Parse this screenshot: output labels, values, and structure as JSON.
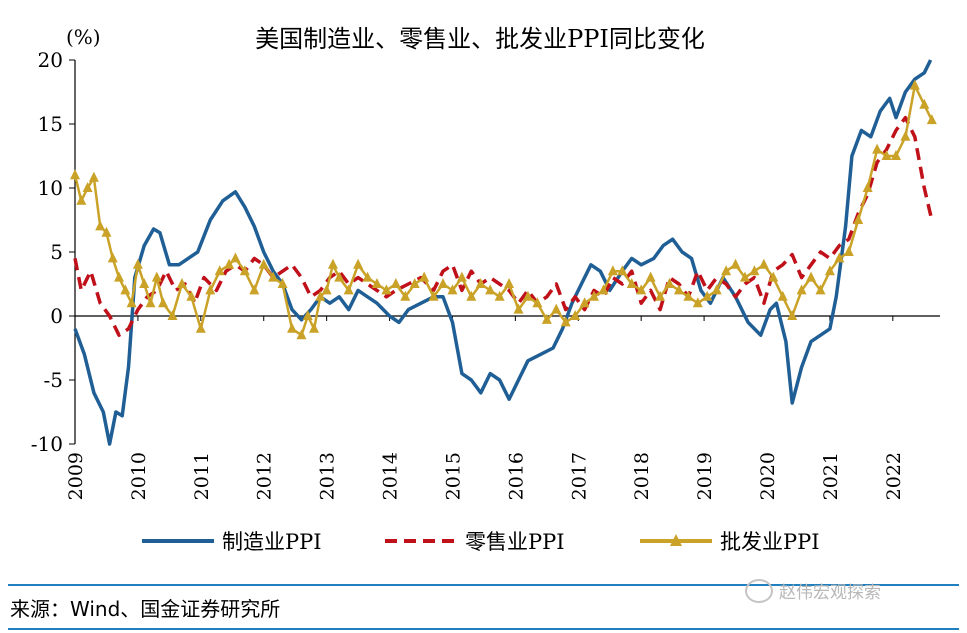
{
  "chart_data": {
    "type": "line",
    "title": "美国制造业、零售业、批发业PPI同比变化",
    "ylabel": "(%)",
    "ylim": [
      -10,
      20
    ],
    "yticks": [
      20,
      15,
      10,
      5,
      0,
      -5,
      -10
    ],
    "xlim": [
      2009,
      2022.75
    ],
    "xticks": [
      "2009",
      "2010",
      "2011",
      "2012",
      "2013",
      "2014",
      "2015",
      "2016",
      "2017",
      "2018",
      "2019",
      "2020",
      "2021",
      "2022"
    ],
    "legend_position": "bottom",
    "grid": false,
    "series": [
      {
        "name": "制造业PPI",
        "color": "#1f5f95",
        "style": "solid",
        "points": [
          [
            2009.0,
            -1.0
          ],
          [
            2009.15,
            -3.0
          ],
          [
            2009.3,
            -6.0
          ],
          [
            2009.45,
            -7.5
          ],
          [
            2009.55,
            -10.0
          ],
          [
            2009.65,
            -7.5
          ],
          [
            2009.75,
            -7.8
          ],
          [
            2009.85,
            -4.0
          ],
          [
            2009.95,
            3.0
          ],
          [
            2010.1,
            5.5
          ],
          [
            2010.25,
            6.8
          ],
          [
            2010.35,
            6.5
          ],
          [
            2010.5,
            4.0
          ],
          [
            2010.65,
            4.0
          ],
          [
            2010.8,
            4.5
          ],
          [
            2010.95,
            5.0
          ],
          [
            2011.15,
            7.5
          ],
          [
            2011.35,
            9.0
          ],
          [
            2011.55,
            9.7
          ],
          [
            2011.7,
            8.5
          ],
          [
            2011.85,
            7.0
          ],
          [
            2012.0,
            5.0
          ],
          [
            2012.15,
            3.5
          ],
          [
            2012.3,
            2.5
          ],
          [
            2012.45,
            0.5
          ],
          [
            2012.6,
            -0.3
          ],
          [
            2012.75,
            0.5
          ],
          [
            2012.9,
            1.5
          ],
          [
            2013.05,
            1.0
          ],
          [
            2013.2,
            1.5
          ],
          [
            2013.35,
            0.5
          ],
          [
            2013.5,
            2.0
          ],
          [
            2013.65,
            1.5
          ],
          [
            2013.8,
            1.0
          ],
          [
            2014.0,
            0.0
          ],
          [
            2014.15,
            -0.5
          ],
          [
            2014.3,
            0.5
          ],
          [
            2014.5,
            1.0
          ],
          [
            2014.7,
            1.5
          ],
          [
            2014.85,
            1.5
          ],
          [
            2015.0,
            -0.5
          ],
          [
            2015.15,
            -4.5
          ],
          [
            2015.3,
            -5.0
          ],
          [
            2015.45,
            -6.0
          ],
          [
            2015.6,
            -4.5
          ],
          [
            2015.75,
            -5.0
          ],
          [
            2015.9,
            -6.5
          ],
          [
            2016.05,
            -5.0
          ],
          [
            2016.2,
            -3.5
          ],
          [
            2016.4,
            -3.0
          ],
          [
            2016.6,
            -2.5
          ],
          [
            2016.75,
            -1.0
          ],
          [
            2016.9,
            1.0
          ],
          [
            2017.05,
            2.5
          ],
          [
            2017.2,
            4.0
          ],
          [
            2017.35,
            3.5
          ],
          [
            2017.5,
            2.0
          ],
          [
            2017.7,
            3.5
          ],
          [
            2017.85,
            4.5
          ],
          [
            2018.0,
            4.0
          ],
          [
            2018.2,
            4.5
          ],
          [
            2018.35,
            5.5
          ],
          [
            2018.5,
            6.0
          ],
          [
            2018.65,
            5.0
          ],
          [
            2018.8,
            4.5
          ],
          [
            2018.95,
            2.0
          ],
          [
            2019.1,
            1.0
          ],
          [
            2019.3,
            3.0
          ],
          [
            2019.5,
            1.5
          ],
          [
            2019.7,
            -0.5
          ],
          [
            2019.9,
            -1.5
          ],
          [
            2020.05,
            0.5
          ],
          [
            2020.15,
            1.0
          ],
          [
            2020.3,
            -2.0
          ],
          [
            2020.4,
            -6.8
          ],
          [
            2020.55,
            -4.0
          ],
          [
            2020.7,
            -2.0
          ],
          [
            2020.85,
            -1.5
          ],
          [
            2021.0,
            -1.0
          ],
          [
            2021.1,
            1.5
          ],
          [
            2021.25,
            7.0
          ],
          [
            2021.35,
            12.5
          ],
          [
            2021.5,
            14.5
          ],
          [
            2021.65,
            14.0
          ],
          [
            2021.8,
            16.0
          ],
          [
            2021.95,
            17.0
          ],
          [
            2022.05,
            15.5
          ],
          [
            2022.2,
            17.5
          ],
          [
            2022.35,
            18.5
          ],
          [
            2022.5,
            19.0
          ],
          [
            2022.6,
            20.0
          ]
        ]
      },
      {
        "name": "零售业PPI",
        "color": "#c0101a",
        "style": "dashed",
        "points": [
          [
            2009.0,
            4.5
          ],
          [
            2009.1,
            2.0
          ],
          [
            2009.25,
            3.5
          ],
          [
            2009.4,
            1.0
          ],
          [
            2009.55,
            0.0
          ],
          [
            2009.7,
            -1.5
          ],
          [
            2009.85,
            -1.0
          ],
          [
            2010.0,
            0.5
          ],
          [
            2010.15,
            1.5
          ],
          [
            2010.3,
            2.0
          ],
          [
            2010.45,
            3.5
          ],
          [
            2010.6,
            2.0
          ],
          [
            2010.75,
            2.5
          ],
          [
            2010.9,
            1.0
          ],
          [
            2011.05,
            3.0
          ],
          [
            2011.25,
            2.0
          ],
          [
            2011.4,
            3.5
          ],
          [
            2011.55,
            4.0
          ],
          [
            2011.7,
            3.5
          ],
          [
            2011.85,
            4.5
          ],
          [
            2012.0,
            4.0
          ],
          [
            2012.15,
            3.0
          ],
          [
            2012.3,
            3.5
          ],
          [
            2012.45,
            4.0
          ],
          [
            2012.6,
            3.0
          ],
          [
            2012.75,
            1.5
          ],
          [
            2012.9,
            2.0
          ],
          [
            2013.05,
            3.0
          ],
          [
            2013.2,
            3.5
          ],
          [
            2013.35,
            2.5
          ],
          [
            2013.5,
            3.0
          ],
          [
            2013.65,
            2.5
          ],
          [
            2013.8,
            2.0
          ],
          [
            2013.95,
            1.5
          ],
          [
            2014.1,
            2.0
          ],
          [
            2014.3,
            2.5
          ],
          [
            2014.5,
            3.0
          ],
          [
            2014.7,
            2.0
          ],
          [
            2014.85,
            3.5
          ],
          [
            2015.0,
            4.0
          ],
          [
            2015.15,
            2.0
          ],
          [
            2015.3,
            3.5
          ],
          [
            2015.45,
            2.5
          ],
          [
            2015.6,
            3.0
          ],
          [
            2015.75,
            2.5
          ],
          [
            2015.9,
            2.0
          ],
          [
            2016.05,
            1.0
          ],
          [
            2016.2,
            2.0
          ],
          [
            2016.35,
            1.0
          ],
          [
            2016.5,
            1.5
          ],
          [
            2016.65,
            2.5
          ],
          [
            2016.8,
            0.5
          ],
          [
            2016.95,
            1.5
          ],
          [
            2017.1,
            0.5
          ],
          [
            2017.25,
            2.0
          ],
          [
            2017.4,
            1.5
          ],
          [
            2017.55,
            3.0
          ],
          [
            2017.7,
            2.5
          ],
          [
            2017.85,
            3.5
          ],
          [
            2018.0,
            1.0
          ],
          [
            2018.15,
            2.0
          ],
          [
            2018.3,
            0.5
          ],
          [
            2018.45,
            3.0
          ],
          [
            2018.6,
            2.5
          ],
          [
            2018.75,
            1.5
          ],
          [
            2018.9,
            3.5
          ],
          [
            2019.05,
            2.0
          ],
          [
            2019.2,
            3.0
          ],
          [
            2019.35,
            2.5
          ],
          [
            2019.5,
            1.5
          ],
          [
            2019.65,
            2.5
          ],
          [
            2019.8,
            3.0
          ],
          [
            2019.95,
            1.0
          ],
          [
            2020.1,
            3.5
          ],
          [
            2020.25,
            4.0
          ],
          [
            2020.4,
            4.8
          ],
          [
            2020.55,
            3.0
          ],
          [
            2020.7,
            4.0
          ],
          [
            2020.85,
            5.0
          ],
          [
            2021.0,
            4.5
          ],
          [
            2021.15,
            5.5
          ],
          [
            2021.3,
            6.0
          ],
          [
            2021.45,
            8.0
          ],
          [
            2021.6,
            9.5
          ],
          [
            2021.75,
            12.0
          ],
          [
            2021.9,
            13.0
          ],
          [
            2022.05,
            14.5
          ],
          [
            2022.2,
            15.5
          ],
          [
            2022.35,
            14.0
          ],
          [
            2022.5,
            10.0
          ],
          [
            2022.62,
            7.5
          ]
        ]
      },
      {
        "name": "批发业PPI",
        "color": "#c9a227",
        "style": "solid-triangle",
        "points": [
          [
            2009.0,
            11.0
          ],
          [
            2009.1,
            9.0
          ],
          [
            2009.2,
            10.0
          ],
          [
            2009.3,
            10.8
          ],
          [
            2009.4,
            7.0
          ],
          [
            2009.5,
            6.5
          ],
          [
            2009.6,
            4.5
          ],
          [
            2009.7,
            3.0
          ],
          [
            2009.8,
            2.0
          ],
          [
            2009.9,
            1.0
          ],
          [
            2010.0,
            4.0
          ],
          [
            2010.1,
            2.5
          ],
          [
            2010.2,
            1.0
          ],
          [
            2010.3,
            3.0
          ],
          [
            2010.4,
            1.0
          ],
          [
            2010.55,
            0.0
          ],
          [
            2010.7,
            2.5
          ],
          [
            2010.85,
            1.5
          ],
          [
            2011.0,
            -1.0
          ],
          [
            2011.15,
            2.0
          ],
          [
            2011.3,
            3.5
          ],
          [
            2011.45,
            4.0
          ],
          [
            2011.55,
            4.5
          ],
          [
            2011.7,
            3.5
          ],
          [
            2011.85,
            2.0
          ],
          [
            2012.0,
            4.0
          ],
          [
            2012.15,
            3.0
          ],
          [
            2012.3,
            2.5
          ],
          [
            2012.45,
            -1.0
          ],
          [
            2012.6,
            -1.5
          ],
          [
            2012.7,
            0.0
          ],
          [
            2012.8,
            -1.0
          ],
          [
            2012.9,
            1.5
          ],
          [
            2013.0,
            2.0
          ],
          [
            2013.1,
            4.0
          ],
          [
            2013.2,
            3.0
          ],
          [
            2013.35,
            2.0
          ],
          [
            2013.5,
            4.0
          ],
          [
            2013.65,
            3.0
          ],
          [
            2013.8,
            2.5
          ],
          [
            2013.95,
            2.0
          ],
          [
            2014.1,
            2.5
          ],
          [
            2014.25,
            1.5
          ],
          [
            2014.4,
            2.5
          ],
          [
            2014.55,
            3.0
          ],
          [
            2014.7,
            1.5
          ],
          [
            2014.85,
            2.5
          ],
          [
            2015.0,
            2.0
          ],
          [
            2015.15,
            3.0
          ],
          [
            2015.3,
            1.5
          ],
          [
            2015.45,
            2.5
          ],
          [
            2015.6,
            2.0
          ],
          [
            2015.75,
            1.5
          ],
          [
            2015.9,
            2.5
          ],
          [
            2016.05,
            0.5
          ],
          [
            2016.2,
            1.5
          ],
          [
            2016.35,
            1.0
          ],
          [
            2016.5,
            -0.3
          ],
          [
            2016.65,
            0.5
          ],
          [
            2016.8,
            -0.5
          ],
          [
            2016.95,
            0.0
          ],
          [
            2017.1,
            1.0
          ],
          [
            2017.25,
            1.5
          ],
          [
            2017.4,
            2.0
          ],
          [
            2017.55,
            3.5
          ],
          [
            2017.7,
            3.5
          ],
          [
            2017.85,
            2.5
          ],
          [
            2018.0,
            2.0
          ],
          [
            2018.15,
            3.0
          ],
          [
            2018.3,
            1.5
          ],
          [
            2018.45,
            2.5
          ],
          [
            2018.6,
            2.0
          ],
          [
            2018.75,
            1.5
          ],
          [
            2018.9,
            1.0
          ],
          [
            2019.05,
            1.5
          ],
          [
            2019.2,
            2.0
          ],
          [
            2019.35,
            3.5
          ],
          [
            2019.5,
            4.0
          ],
          [
            2019.65,
            3.0
          ],
          [
            2019.8,
            3.5
          ],
          [
            2019.95,
            4.0
          ],
          [
            2020.1,
            3.0
          ],
          [
            2020.25,
            1.5
          ],
          [
            2020.4,
            0.0
          ],
          [
            2020.55,
            2.0
          ],
          [
            2020.7,
            3.0
          ],
          [
            2020.85,
            2.0
          ],
          [
            2021.0,
            3.5
          ],
          [
            2021.15,
            4.5
          ],
          [
            2021.3,
            5.0
          ],
          [
            2021.45,
            7.5
          ],
          [
            2021.6,
            10.0
          ],
          [
            2021.75,
            13.0
          ],
          [
            2021.9,
            12.5
          ],
          [
            2022.05,
            12.5
          ],
          [
            2022.2,
            14.0
          ],
          [
            2022.35,
            18.0
          ],
          [
            2022.5,
            16.5
          ],
          [
            2022.62,
            15.3
          ]
        ]
      }
    ]
  },
  "source": "来源：Wind、国金证券研究所",
  "watermark": "赵伟宏观探索"
}
